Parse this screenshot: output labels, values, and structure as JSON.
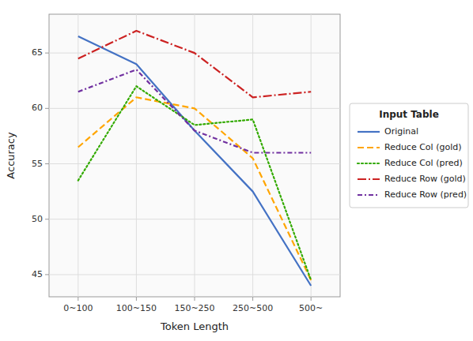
{
  "chart_data": {
    "type": "line",
    "xlabel": "Token Length",
    "ylabel": "Accuracy",
    "legend_title": "Input Table",
    "categories": [
      "0~100",
      "100~150",
      "150~250",
      "250~500",
      "500~"
    ],
    "series": [
      {
        "name": "Original",
        "color": "#4472C4",
        "line_style": "solid",
        "values": [
          66.5,
          64.0,
          58.0,
          52.5,
          44.0
        ]
      },
      {
        "name": "Reduce Col (gold)",
        "color": "#FFA500",
        "line_style": "dashed",
        "values": [
          56.5,
          61.0,
          60.0,
          55.5,
          44.5
        ]
      },
      {
        "name": "Reduce Col (pred)",
        "color": "#33AA00",
        "line_style": "dotted",
        "values": [
          53.5,
          62.0,
          58.5,
          59.0,
          44.5
        ]
      },
      {
        "name": "Reduce Row (gold)",
        "color": "#CC2222",
        "line_style": "longdashdot",
        "values": [
          64.5,
          67.0,
          65.0,
          61.0,
          61.5
        ]
      },
      {
        "name": "Reduce Row (pred)",
        "color": "#7030A0",
        "line_style": "dashdot",
        "values": [
          61.5,
          63.5,
          58.0,
          56.0,
          56.0
        ]
      }
    ],
    "ylim": [
      43,
      68.5
    ],
    "yticks": [
      45,
      50,
      55,
      60,
      65
    ],
    "grid": true,
    "legend": "right"
  }
}
